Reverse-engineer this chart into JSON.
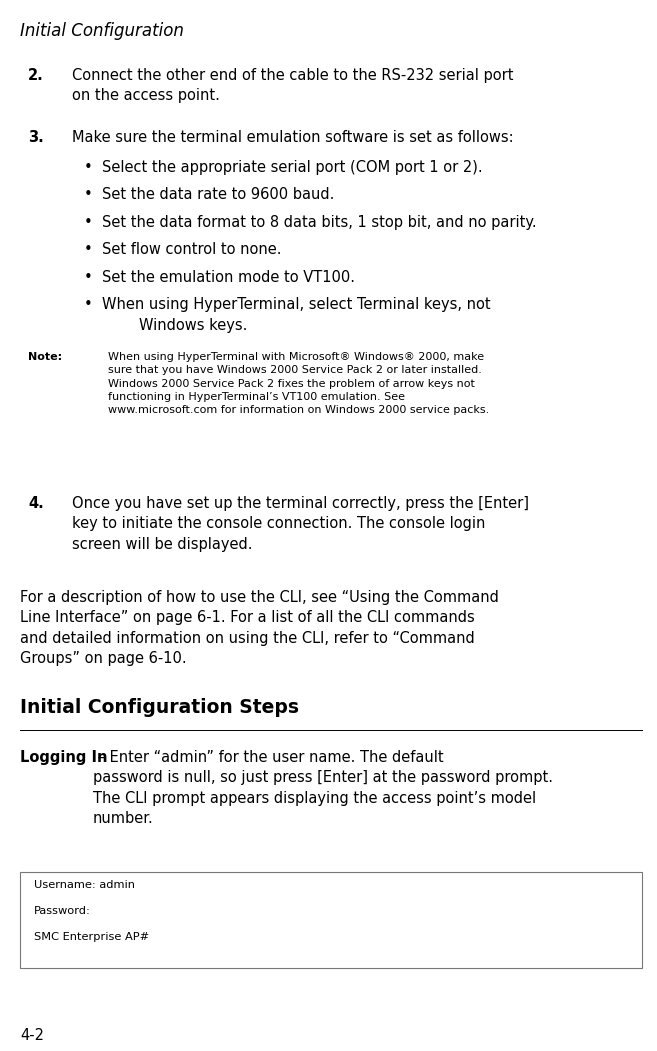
{
  "bg_color": "#ffffff",
  "text_color": "#000000",
  "page_width": 6.57,
  "page_height": 10.51,
  "header_italic": "Initial Configuration",
  "header_fontsize": 12,
  "body_fontsize": 10.5,
  "small_fontsize": 8.0,
  "step2_num": "2.",
  "step2_text": "Connect the other end of the cable to the RS-232 serial port\non the access point.",
  "step3_num": "3.",
  "step3_text": "Make sure the terminal emulation software is set as follows:",
  "bullets": [
    "Select the appropriate serial port (COM port 1 or 2).",
    "Set the data rate to 9600 baud.",
    "Set the data format to 8 data bits, 1 stop bit, and no parity.",
    "Set flow control to none.",
    "Set the emulation mode to VT100.",
    "When using HyperTerminal, select Terminal keys, not\n        Windows keys."
  ],
  "note_label": "Note:",
  "note_text": "When using HyperTerminal with Microsoft® Windows® 2000, make\nsure that you have Windows 2000 Service Pack 2 or later installed.\nWindows 2000 Service Pack 2 fixes the problem of arrow keys not\nfunctioning in HyperTerminal’s VT100 emulation. See\nwww.microsoft.com for information on Windows 2000 service packs.",
  "step4_num": "4.",
  "step4_text": "Once you have set up the terminal correctly, press the [Enter]\nkey to initiate the console connection. The console login\nscreen will be displayed.",
  "para_text": "For a description of how to use the CLI, see “Using the Command\nLine Interface” on page 6-1. For a list of all the CLI commands\nand detailed information on using the CLI, refer to “Command\nGroups” on page 6-10.",
  "section_heading": "Initial Configuration Steps",
  "logging_label": "Logging In",
  "logging_rest": " – Enter “admin” for the user name. The default\npassword is null, so just press [Enter] at the password prompt.\nThe CLI prompt appears displaying the access point’s model\nnumber.",
  "code_lines": [
    "Username: admin",
    "Password:",
    "SMC Enterprise AP#"
  ],
  "footer_text": "4-2"
}
